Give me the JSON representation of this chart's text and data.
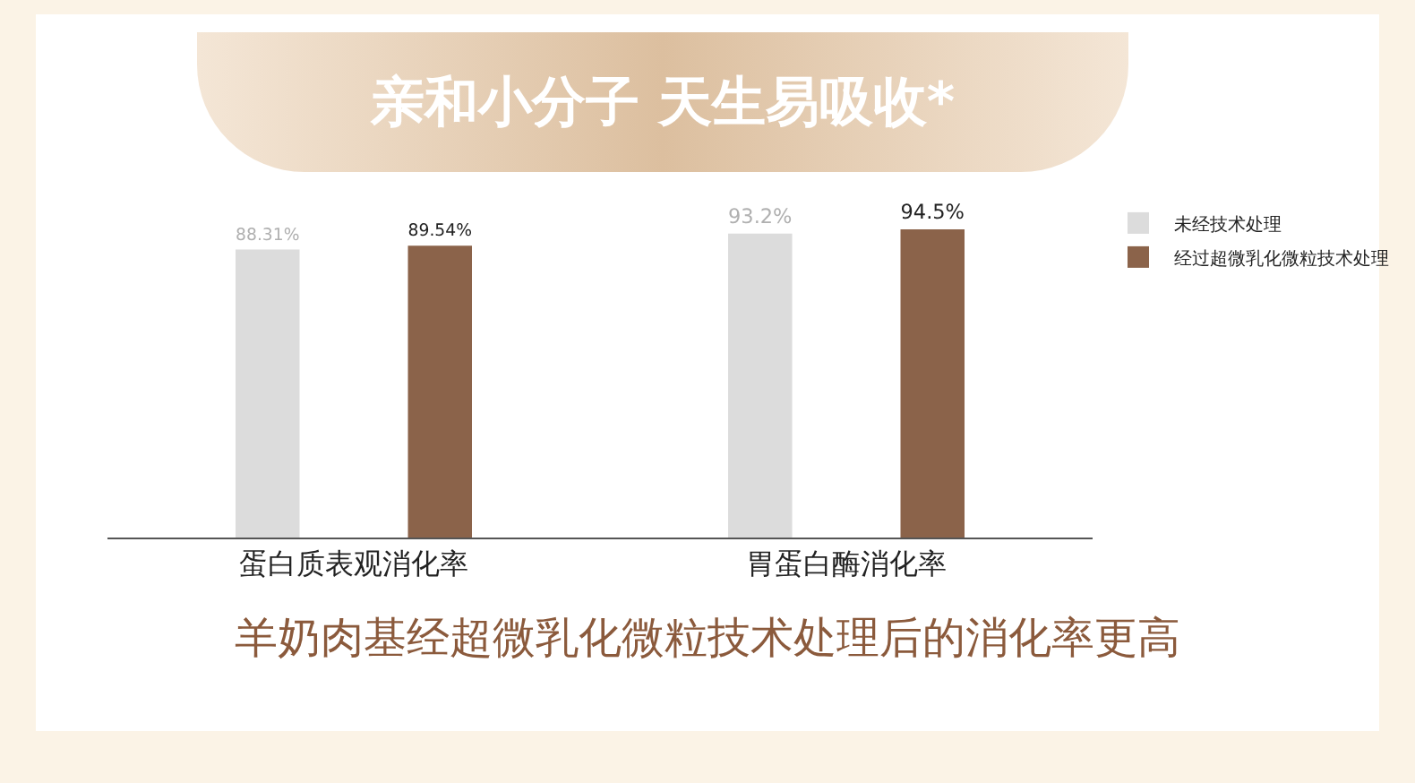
{
  "chart_data": {
    "type": "bar",
    "title": "亲和小分子 天生易吸收*",
    "subtitle": "羊奶肉基经超微乳化微粒技术处理后的消化率更高",
    "categories": [
      "蛋白质表观消化率",
      "胃蛋白酶消化率"
    ],
    "series": [
      {
        "name": "未经技术处理",
        "color": "#dcdcdc",
        "values": [
          88.31,
          93.2
        ],
        "value_labels": [
          "88.31%",
          "93.2%"
        ]
      },
      {
        "name": "经过超微乳化微粒技术处理",
        "color": "#8b634a",
        "values": [
          89.54,
          94.5
        ],
        "value_labels": [
          "89.54%",
          "94.5%"
        ]
      }
    ],
    "grid": false,
    "legend": "top right",
    "tick_labels": "x"
  }
}
